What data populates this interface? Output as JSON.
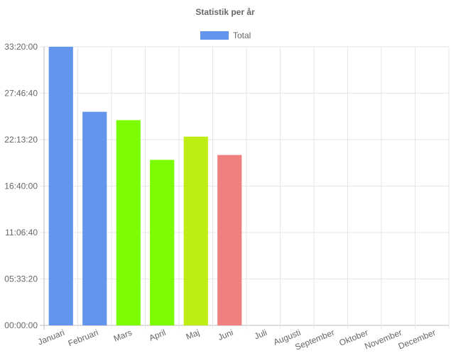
{
  "chart_data": {
    "type": "bar",
    "title": "Statistik per år",
    "legend": {
      "placement": "top",
      "entries": [
        {
          "label": "Total",
          "color": "#6495ED"
        }
      ]
    },
    "categories": [
      "Januari",
      "Februari",
      "Mars",
      "April",
      "Maj",
      "Juni",
      "Juli",
      "Augusti",
      "September",
      "Oktober",
      "November",
      "December"
    ],
    "series": [
      {
        "name": "Total",
        "values_seconds": [
          120000,
          92000,
          88400,
          71300,
          81300,
          73400,
          null,
          null,
          null,
          null,
          null,
          null
        ],
        "colors": [
          "#6495ED",
          "#6495ED",
          "#7CFC00",
          "#7CFC00",
          "#BCEE14",
          "#F08080",
          null,
          null,
          null,
          null,
          null,
          null
        ]
      }
    ],
    "value_format": "HH:MM:SS",
    "y_ticks": [
      "00:00:00",
      "05:33:20",
      "11:06:40",
      "16:40:00",
      "22:13:20",
      "27:46:40",
      "33:20:00"
    ],
    "y_tick_seconds": [
      0,
      20000,
      40000,
      60000,
      80000,
      100000,
      120000
    ],
    "ylim_seconds": [
      0,
      120000
    ],
    "xlabel": "",
    "ylabel": "",
    "grid": true
  }
}
